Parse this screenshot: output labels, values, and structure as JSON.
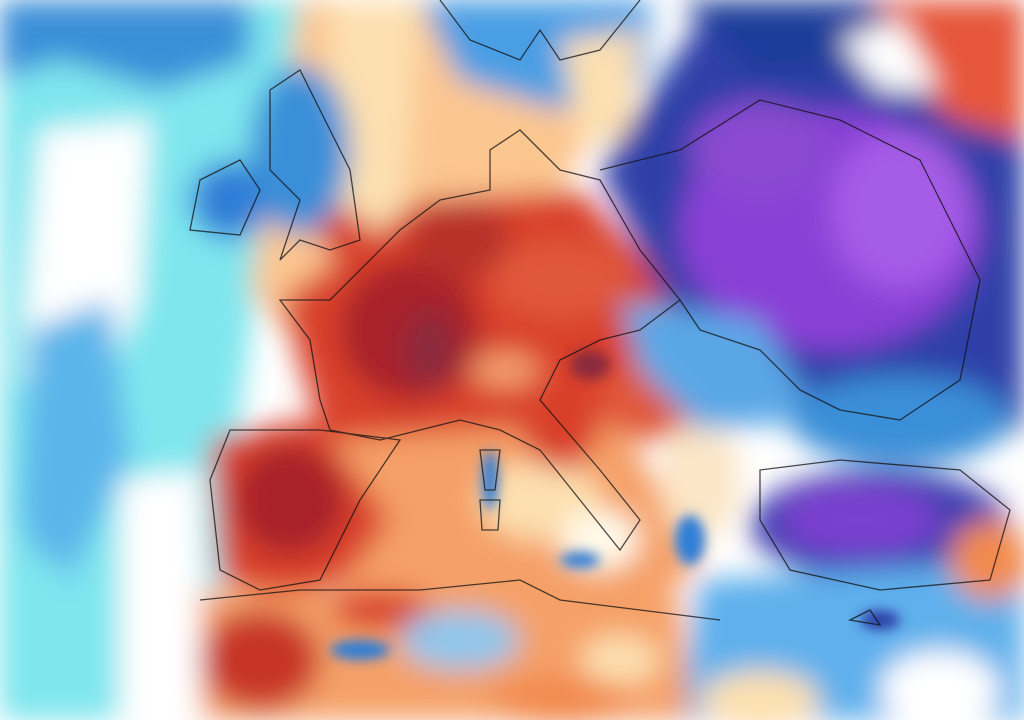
{
  "map": {
    "palette": {
      "deep_purple": "#8a3fd6",
      "purple": "#a55be6",
      "dark_blue": "#2e3fa8",
      "blue": "#2f7ed8",
      "light_blue": "#62b8ee",
      "cyan": "#7fe6ee",
      "white": "#ffffff",
      "peach": "#fde0b0",
      "light_orange": "#fbb777",
      "orange": "#f28a4e",
      "red": "#d9402b",
      "dark_red": "#a8242a",
      "maroon": "#8a2a3c"
    },
    "borders_color": "#111111"
  }
}
